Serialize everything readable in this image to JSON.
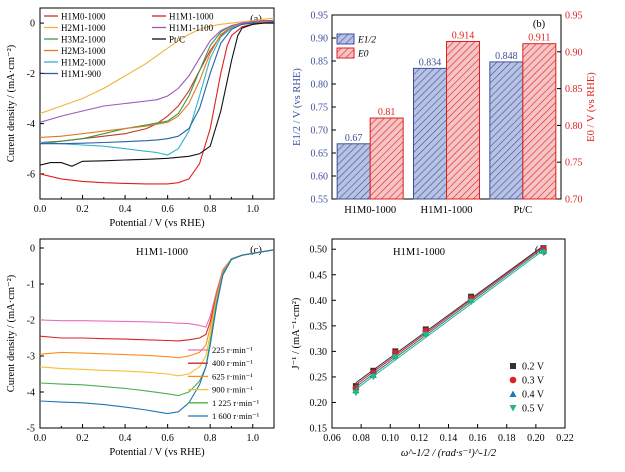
{
  "figure": "figure-2x2",
  "chart_data": [
    {
      "id": "a",
      "type": "line",
      "panel_label": "(a)",
      "xlabel": "Potential / V (vs RHE)",
      "ylabel": "Curent density / (mA·cm⁻²)",
      "xlim": [
        0.0,
        1.1
      ],
      "ylim": [
        -7,
        0.6
      ],
      "xticks": [
        "0.0",
        "0.2",
        "0.4",
        "0.6",
        "0.8",
        "1.0"
      ],
      "yticks": [
        "-6",
        "-4",
        "-2",
        "0"
      ],
      "legend_placement": "top",
      "series": [
        {
          "name": "H1M0-1000",
          "color": "#c0392b",
          "x": [
            0,
            0.1,
            0.2,
            0.3,
            0.4,
            0.5,
            0.55,
            0.6,
            0.65,
            0.7,
            0.75,
            0.8,
            0.85,
            0.9,
            0.95,
            1.0,
            1.05,
            1.1
          ],
          "y": [
            -4.75,
            -4.7,
            -4.6,
            -4.5,
            -4.4,
            -4.2,
            -4.0,
            -3.7,
            -3.3,
            -2.7,
            -1.9,
            -1.1,
            -0.5,
            -0.2,
            -0.05,
            0.0,
            0.05,
            0.05
          ]
        },
        {
          "name": "H2M1-1000",
          "color": "#f0b23c",
          "x": [
            0,
            0.1,
            0.2,
            0.3,
            0.4,
            0.5,
            0.55,
            0.6,
            0.65,
            0.7,
            0.75,
            0.8,
            0.85,
            0.9,
            0.95,
            1.0,
            1.05,
            1.1
          ],
          "y": [
            -3.6,
            -3.3,
            -3.0,
            -2.6,
            -2.1,
            -1.6,
            -1.3,
            -1.0,
            -0.7,
            -0.45,
            -0.25,
            -0.12,
            -0.05,
            0.0,
            0.05,
            0.1,
            0.15,
            0.2
          ]
        },
        {
          "name": "H3M2-1000",
          "color": "#3a9a4a",
          "x": [
            0,
            0.1,
            0.2,
            0.3,
            0.4,
            0.5,
            0.6,
            0.65,
            0.7,
            0.75,
            0.8,
            0.85,
            0.9,
            0.95,
            1.0,
            1.05,
            1.1
          ],
          "y": [
            -4.8,
            -4.7,
            -4.6,
            -4.4,
            -4.2,
            -4.05,
            -3.9,
            -3.6,
            -2.9,
            -1.9,
            -0.9,
            -0.35,
            -0.1,
            0.0,
            0.05,
            0.05,
            0.1
          ]
        },
        {
          "name": "H2M3-1000",
          "color": "#e07b24",
          "x": [
            0,
            0.1,
            0.2,
            0.3,
            0.4,
            0.5,
            0.6,
            0.65,
            0.7,
            0.75,
            0.8,
            0.85,
            0.9,
            0.95,
            1.0,
            1.05,
            1.1
          ],
          "y": [
            -4.55,
            -4.5,
            -4.4,
            -4.3,
            -4.2,
            -4.1,
            -3.95,
            -3.7,
            -3.2,
            -2.3,
            -1.2,
            -0.45,
            -0.15,
            -0.05,
            0.0,
            0.05,
            0.1
          ]
        },
        {
          "name": "H1M2-1000",
          "color": "#2fb6c8",
          "x": [
            0,
            0.1,
            0.2,
            0.3,
            0.4,
            0.5,
            0.55,
            0.6,
            0.65,
            0.7,
            0.75,
            0.8,
            0.85,
            0.9,
            0.95,
            1.0,
            1.05,
            1.1
          ],
          "y": [
            -4.75,
            -4.8,
            -4.85,
            -4.9,
            -5.0,
            -5.1,
            -5.15,
            -5.25,
            -5.0,
            -4.3,
            -2.9,
            -1.4,
            -0.55,
            -0.2,
            -0.05,
            0.0,
            0.0,
            0.05
          ]
        },
        {
          "name": "H1M1-900",
          "color": "#2c5fa8",
          "x": [
            0,
            0.1,
            0.2,
            0.3,
            0.4,
            0.5,
            0.55,
            0.6,
            0.65,
            0.7,
            0.75,
            0.8,
            0.85,
            0.9,
            0.95,
            1.0,
            1.05,
            1.1
          ],
          "y": [
            -4.8,
            -4.8,
            -4.78,
            -4.75,
            -4.72,
            -4.68,
            -4.65,
            -4.6,
            -4.5,
            -4.2,
            -3.4,
            -2.0,
            -0.8,
            -0.25,
            -0.05,
            0.0,
            0.0,
            0.05
          ]
        },
        {
          "name": "H1M1-1000",
          "color": "#e02020",
          "x": [
            0,
            0.1,
            0.2,
            0.3,
            0.4,
            0.5,
            0.6,
            0.65,
            0.7,
            0.75,
            0.8,
            0.85,
            0.88,
            0.9,
            0.95,
            1.0,
            1.05,
            1.1
          ],
          "y": [
            -6.0,
            -6.2,
            -6.3,
            -6.35,
            -6.38,
            -6.4,
            -6.4,
            -6.35,
            -6.2,
            -5.6,
            -4.2,
            -2.0,
            -0.9,
            -0.5,
            -0.15,
            -0.05,
            0.0,
            0.0
          ]
        },
        {
          "name": "H1M1-1100",
          "color": "#9b59b6",
          "x": [
            0,
            0.1,
            0.2,
            0.3,
            0.4,
            0.5,
            0.55,
            0.6,
            0.65,
            0.7,
            0.75,
            0.8,
            0.85,
            0.9,
            0.95,
            1.0,
            1.05,
            1.1
          ],
          "y": [
            -3.95,
            -3.7,
            -3.5,
            -3.3,
            -3.2,
            -3.1,
            -3.05,
            -2.9,
            -2.6,
            -2.1,
            -1.4,
            -0.7,
            -0.3,
            -0.1,
            0.0,
            0.05,
            0.1,
            0.1
          ]
        },
        {
          "name": "Pt/C",
          "color": "#111111",
          "x": [
            0,
            0.05,
            0.1,
            0.15,
            0.2,
            0.3,
            0.4,
            0.5,
            0.6,
            0.7,
            0.75,
            0.8,
            0.85,
            0.9,
            0.93,
            0.95,
            1.0,
            1.05,
            1.1
          ],
          "y": [
            -5.65,
            -5.55,
            -5.55,
            -5.7,
            -5.5,
            -5.48,
            -5.45,
            -5.42,
            -5.38,
            -5.3,
            -5.2,
            -4.9,
            -3.5,
            -1.5,
            -0.5,
            -0.2,
            -0.05,
            0.0,
            0.0
          ]
        }
      ]
    },
    {
      "id": "b",
      "type": "bar",
      "panel_label": "(b)",
      "categories": [
        "H1M0-1000",
        "H1M1-1000",
        "Pt/C"
      ],
      "ylabel_left": "E1/2 / V (vs RHE)",
      "ylabel_right": "E0 / V (vs RHE)",
      "ylim_left": [
        0.55,
        0.95
      ],
      "ylim_right": [
        0.7,
        0.95
      ],
      "yticks_left": [
        "0.55",
        "0.60",
        "0.65",
        "0.70",
        "0.75",
        "0.80",
        "0.85",
        "0.90",
        "0.95"
      ],
      "yticks_right": [
        "0.70",
        "0.75",
        "0.80",
        "0.85",
        "0.90",
        "0.95"
      ],
      "legend_placement": "top-left",
      "series": [
        {
          "name": "E1/2",
          "axis": "left",
          "color": "#3f4f9a",
          "fill": "#b8c2e3",
          "values": [
            0.67,
            0.834,
            0.848
          ],
          "labels": [
            "0.67",
            "0.834",
            "0.848"
          ]
        },
        {
          "name": "E0",
          "axis": "right",
          "color": "#e02020",
          "fill": "#f5c4c4",
          "values": [
            0.81,
            0.914,
            0.911
          ],
          "labels": [
            "0.81",
            "0.914",
            "0.911"
          ]
        }
      ]
    },
    {
      "id": "c",
      "type": "line",
      "panel_label": "(c)",
      "annotation": "H1M1-1000",
      "xlabel": "Potential / V (vs RHE)",
      "ylabel": "Curent density / (mA·cm⁻²)",
      "xlim": [
        0.0,
        1.1
      ],
      "ylim": [
        -5,
        0.25
      ],
      "xticks": [
        "0.0",
        "0.2",
        "0.4",
        "0.6",
        "0.8",
        "1.0"
      ],
      "yticks": [
        "-5",
        "-4",
        "-3",
        "-2",
        "-1",
        "0"
      ],
      "legend_placement": "bottom-right",
      "series": [
        {
          "name": "225 r·min⁻¹",
          "color": "#e76fb8",
          "x": [
            0,
            0.1,
            0.2,
            0.3,
            0.4,
            0.5,
            0.6,
            0.65,
            0.7,
            0.72,
            0.75,
            0.78,
            0.8,
            0.83,
            0.86,
            0.9,
            0.95,
            1.0,
            1.05,
            1.1
          ],
          "y": [
            -2.0,
            -2.02,
            -2.02,
            -2.03,
            -2.04,
            -2.05,
            -2.07,
            -2.09,
            -2.1,
            -2.12,
            -2.15,
            -2.2,
            -1.9,
            -1.2,
            -0.6,
            -0.3,
            -0.2,
            -0.15,
            -0.1,
            -0.05
          ]
        },
        {
          "name": "400 r·min⁻¹",
          "color": "#d62728",
          "x": [
            0,
            0.1,
            0.2,
            0.3,
            0.4,
            0.5,
            0.6,
            0.65,
            0.7,
            0.75,
            0.78,
            0.8,
            0.83,
            0.86,
            0.9,
            0.95,
            1.0,
            1.05,
            1.1
          ],
          "y": [
            -2.45,
            -2.5,
            -2.5,
            -2.52,
            -2.53,
            -2.55,
            -2.57,
            -2.58,
            -2.55,
            -2.5,
            -2.4,
            -2.05,
            -1.3,
            -0.65,
            -0.3,
            -0.2,
            -0.15,
            -0.1,
            -0.05
          ]
        },
        {
          "name": "625 r·min⁻¹",
          "color": "#ff8a1e",
          "x": [
            0,
            0.1,
            0.2,
            0.3,
            0.4,
            0.5,
            0.6,
            0.65,
            0.7,
            0.75,
            0.78,
            0.8,
            0.83,
            0.86,
            0.9,
            0.95,
            1.0,
            1.05,
            1.1
          ],
          "y": [
            -2.95,
            -2.9,
            -2.92,
            -2.94,
            -2.96,
            -2.98,
            -3.02,
            -3.05,
            -3.0,
            -2.9,
            -2.7,
            -2.2,
            -1.35,
            -0.65,
            -0.3,
            -0.2,
            -0.15,
            -0.1,
            -0.05
          ]
        },
        {
          "name": "900 r·min⁻¹",
          "color": "#f2c037",
          "x": [
            0,
            0.1,
            0.2,
            0.3,
            0.4,
            0.5,
            0.6,
            0.65,
            0.7,
            0.75,
            0.78,
            0.8,
            0.83,
            0.86,
            0.9,
            0.95,
            1.0,
            1.05,
            1.1
          ],
          "y": [
            -3.3,
            -3.35,
            -3.37,
            -3.4,
            -3.42,
            -3.45,
            -3.5,
            -3.55,
            -3.5,
            -3.3,
            -3.0,
            -2.4,
            -1.4,
            -0.7,
            -0.3,
            -0.2,
            -0.15,
            -0.1,
            -0.05
          ]
        },
        {
          "name": "1 225 r·min⁻¹",
          "color": "#4caf50",
          "x": [
            0,
            0.1,
            0.2,
            0.3,
            0.4,
            0.5,
            0.6,
            0.65,
            0.7,
            0.75,
            0.78,
            0.8,
            0.83,
            0.86,
            0.9,
            0.95,
            1.0,
            1.05,
            1.1
          ],
          "y": [
            -3.75,
            -3.78,
            -3.8,
            -3.85,
            -3.9,
            -3.97,
            -4.05,
            -4.1,
            -4.0,
            -3.7,
            -3.3,
            -2.6,
            -1.5,
            -0.7,
            -0.3,
            -0.2,
            -0.15,
            -0.1,
            -0.05
          ]
        },
        {
          "name": "1 600 r·min⁻¹",
          "color": "#1f77b4",
          "x": [
            0,
            0.1,
            0.2,
            0.3,
            0.4,
            0.5,
            0.55,
            0.6,
            0.65,
            0.7,
            0.75,
            0.78,
            0.8,
            0.83,
            0.86,
            0.9,
            0.95,
            1.0,
            1.05,
            1.1
          ],
          "y": [
            -4.25,
            -4.28,
            -4.3,
            -4.35,
            -4.42,
            -4.5,
            -4.55,
            -4.6,
            -4.55,
            -4.3,
            -3.8,
            -3.3,
            -2.7,
            -1.6,
            -0.75,
            -0.32,
            -0.2,
            -0.15,
            -0.1,
            -0.05
          ]
        }
      ]
    },
    {
      "id": "d",
      "type": "scatter",
      "panel_label": "(d)",
      "annotation": "H1M1-1000",
      "xlabel": "ω^-1/2 / (rad·s⁻¹)^-1/2",
      "ylabel": "J⁻¹ / (mA⁻¹·cm²)",
      "xlim": [
        0.06,
        0.22
      ],
      "ylim": [
        0.15,
        0.52
      ],
      "xticks": [
        "0.06",
        "0.08",
        "0.10",
        "0.12",
        "0.14",
        "0.16",
        "0.18",
        "0.20",
        "0.22"
      ],
      "yticks": [
        "0.15",
        "0.20",
        "0.25",
        "0.30",
        "0.35",
        "0.40",
        "0.45",
        "0.50"
      ],
      "legend_placement": "bottom-right",
      "x": [
        0.0764,
        0.0884,
        0.1035,
        0.1244,
        0.1555,
        0.2052
      ],
      "series": [
        {
          "name": "0.2 V",
          "marker": "square",
          "color": "#333333",
          "y": [
            0.232,
            0.262,
            0.3,
            0.343,
            0.407,
            0.502
          ]
        },
        {
          "name": "0.3 V",
          "marker": "circle",
          "color": "#e02020",
          "y": [
            0.228,
            0.258,
            0.297,
            0.34,
            0.404,
            0.5
          ]
        },
        {
          "name": "0.4 V",
          "marker": "triangle",
          "color": "#1f77b4",
          "y": [
            0.224,
            0.254,
            0.292,
            0.336,
            0.401,
            0.497
          ]
        },
        {
          "name": "0.5 V",
          "marker": "triangle-down",
          "color": "#2ab87a",
          "y": [
            0.219,
            0.25,
            0.288,
            0.332,
            0.397,
            0.493
          ]
        }
      ]
    }
  ]
}
